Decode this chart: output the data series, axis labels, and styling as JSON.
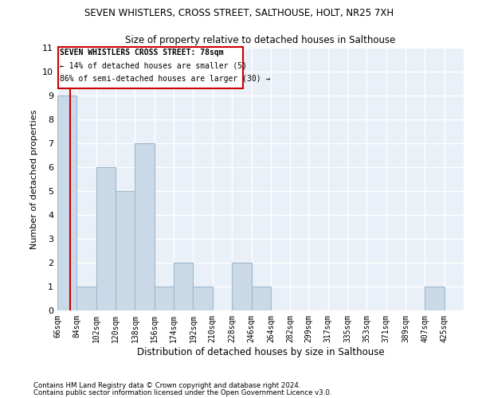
{
  "title": "SEVEN WHISTLERS, CROSS STREET, SALTHOUSE, HOLT, NR25 7XH",
  "subtitle": "Size of property relative to detached houses in Salthouse",
  "xlabel": "Distribution of detached houses by size in Salthouse",
  "ylabel": "Number of detached properties",
  "bins": [
    66,
    84,
    102,
    120,
    138,
    156,
    174,
    192,
    210,
    228,
    246,
    264,
    282,
    299,
    317,
    335,
    353,
    371,
    389,
    407,
    425
  ],
  "bin_labels": [
    "66sqm",
    "84sqm",
    "102sqm",
    "120sqm",
    "138sqm",
    "156sqm",
    "174sqm",
    "192sqm",
    "210sqm",
    "228sqm",
    "246sqm",
    "264sqm",
    "282sqm",
    "299sqm",
    "317sqm",
    "335sqm",
    "353sqm",
    "371sqm",
    "389sqm",
    "407sqm",
    "425sqm"
  ],
  "heights": [
    9,
    1,
    6,
    5,
    7,
    1,
    2,
    1,
    0,
    2,
    1,
    0,
    0,
    0,
    0,
    0,
    0,
    0,
    0,
    1,
    0
  ],
  "bar_color": "#c9d9e8",
  "bar_edge_color": "#a0b8cc",
  "property_sqm": 78,
  "property_line_color": "#cc0000",
  "ylim": [
    0,
    11
  ],
  "yticks": [
    0,
    1,
    2,
    3,
    4,
    5,
    6,
    7,
    8,
    9,
    10,
    11
  ],
  "annotation_title": "SEVEN WHISTLERS CROSS STREET: 78sqm",
  "annotation_line1": "← 14% of detached houses are smaller (5)",
  "annotation_line2": "86% of semi-detached houses are larger (30) →",
  "annotation_box_color": "#cc0000",
  "footer_line1": "Contains HM Land Registry data © Crown copyright and database right 2024.",
  "footer_line2": "Contains public sector information licensed under the Open Government Licence v3.0.",
  "background_color": "#eaf0f7",
  "grid_color": "#ffffff"
}
